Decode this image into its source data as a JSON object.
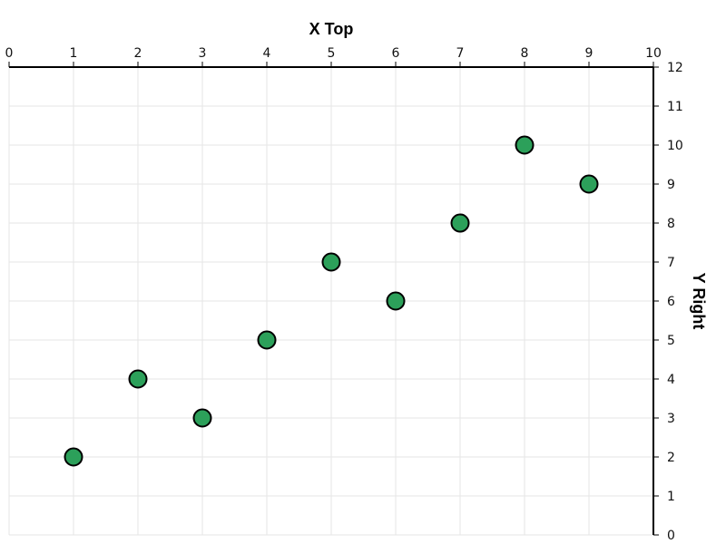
{
  "chart_data": {
    "type": "scatter",
    "xlabel": "X Top",
    "ylabel": "Y Right",
    "x_axis_position": "top",
    "y_axis_position": "right",
    "xlim": [
      0,
      10
    ],
    "ylim": [
      0,
      12
    ],
    "x_ticks": [
      0,
      1,
      2,
      3,
      4,
      5,
      6,
      7,
      8,
      9,
      10
    ],
    "y_ticks": [
      0,
      1,
      2,
      3,
      4,
      5,
      6,
      7,
      8,
      9,
      10,
      11,
      12
    ],
    "grid": true,
    "series": [
      {
        "color": "#2ca05a",
        "x": [
          1,
          2,
          3,
          4,
          5,
          6,
          7,
          8,
          9
        ],
        "y": [
          2,
          4,
          3,
          5,
          7,
          6,
          8,
          10,
          9
        ]
      }
    ],
    "colors": {
      "marker_fill": "#2ca05a",
      "marker_stroke": "#000000",
      "grid": "#e6e6e6",
      "axis": "#000000"
    }
  }
}
